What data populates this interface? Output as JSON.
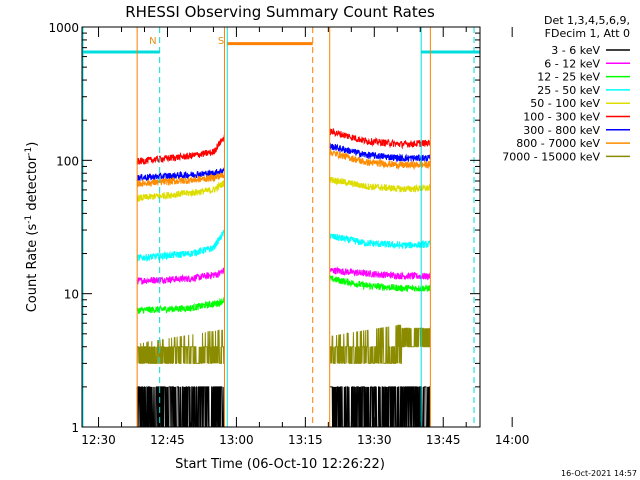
{
  "chart_data": {
    "type": "line",
    "title": "RHESSI Observing Summary Count Rates",
    "xlabel": "Start Time (06-Oct-10 12:26:22)",
    "ylabel_main": "Count Rate (s",
    "ylabel_sup1": "-1",
    "ylabel_mid": " detector",
    "ylabel_sup2": "-1",
    "ylabel_end": ")",
    "ylabel": "Count Rate (s-1 detector-1)",
    "yscale": "log",
    "ylim": [
      1,
      1000
    ],
    "xlim_min": [
      26.4,
      113.0
    ],
    "xtick_values": [
      30,
      45,
      60,
      75,
      90,
      105,
      120
    ],
    "xtick_labels": [
      "12:30",
      "12:45",
      "13:00",
      "13:15",
      "13:30",
      "13:45",
      "14:00"
    ],
    "ytick_values": [
      1,
      10,
      100,
      1000
    ],
    "ytick_labels": [
      "1",
      "10",
      "100",
      "1000"
    ],
    "info_lines": [
      "Det 1,3,4,5,6,9,",
      "FDecim 1, Att 0"
    ],
    "timestamp": "16-Oct-2021 14:57",
    "markers": [
      {
        "label": "N",
        "t": 43.3,
        "color": "#e8901a"
      },
      {
        "label": "S",
        "t": 58.0,
        "color": "#e8901a"
      }
    ],
    "night_periods": [
      {
        "start": 26.4,
        "end": 43.3,
        "level": 650,
        "color": "#00dddd"
      },
      {
        "start": 100.2,
        "end": 113.0,
        "level": 650,
        "color": "#00dddd"
      }
    ],
    "saa_period": {
      "start": 58.0,
      "end": 76.6,
      "level": 750,
      "color": "#ff7f00"
    },
    "dashed_lines": [
      {
        "t": 43.3,
        "color": "#00dddd"
      },
      {
        "t": 76.6,
        "color": "#ff7f00"
      },
      {
        "t": 111.7,
        "color": "#00dddd"
      }
    ],
    "solid_vlines": [
      {
        "t": 26.6,
        "color": "#00dddd"
      },
      {
        "t": 58.0,
        "color": "#00dddd"
      },
      {
        "t": 100.2,
        "color": "#00dddd"
      },
      {
        "t": 38.4,
        "color": "#ff7f00"
      },
      {
        "t": 57.4,
        "color": "#ff7f00"
      },
      {
        "t": 80.3,
        "color": "#ff7f00"
      },
      {
        "t": 102.2,
        "color": "#ff7f00"
      }
    ],
    "segments": [
      [
        38.4,
        57.4
      ],
      [
        80.3,
        102.2
      ]
    ],
    "series": [
      {
        "name": "3 - 6 keV",
        "color": "#000000",
        "kind": "count_noise",
        "lo": 1,
        "hi": 2,
        "profile": [
          [
            38.4,
            1.5
          ],
          [
            57.4,
            1.6
          ],
          [
            80.3,
            1.6
          ],
          [
            102.2,
            1.5
          ]
        ]
      },
      {
        "name": "6 - 12 keV",
        "color": "#ff00ff",
        "profile": [
          [
            38.4,
            12.5
          ],
          [
            50,
            13.0
          ],
          [
            56,
            14.0
          ],
          [
            57.4,
            15.0
          ],
          [
            80.3,
            15.0
          ],
          [
            88,
            14.2
          ],
          [
            96,
            13.6
          ],
          [
            102.2,
            13.5
          ]
        ]
      },
      {
        "name": "12 - 25 keV",
        "color": "#00ff00",
        "profile": [
          [
            38.4,
            7.5
          ],
          [
            50,
            7.8
          ],
          [
            56,
            8.5
          ],
          [
            57.4,
            9.0
          ],
          [
            80.3,
            13.0
          ],
          [
            88,
            11.5
          ],
          [
            96,
            11.0
          ],
          [
            102.2,
            11.0
          ]
        ]
      },
      {
        "name": "25 - 50 keV",
        "color": "#00ffff",
        "profile": [
          [
            38.4,
            18.5
          ],
          [
            50,
            20.0
          ],
          [
            55,
            22.0
          ],
          [
            57.4,
            29.0
          ],
          [
            80.3,
            27.0
          ],
          [
            88,
            24.0
          ],
          [
            96,
            23.0
          ],
          [
            102.2,
            23.5
          ]
        ]
      },
      {
        "name": "50 - 100 keV",
        "color": "#dddd00",
        "profile": [
          [
            38.4,
            52.0
          ],
          [
            50,
            57.0
          ],
          [
            55,
            60.0
          ],
          [
            57.4,
            68.0
          ],
          [
            80.3,
            72.0
          ],
          [
            88,
            64.0
          ],
          [
            96,
            61.0
          ],
          [
            102.2,
            62.0
          ]
        ]
      },
      {
        "name": "100 - 300 keV",
        "color": "#ff0000",
        "profile": [
          [
            38.4,
            98.0
          ],
          [
            50,
            108.0
          ],
          [
            55,
            115.0
          ],
          [
            57.4,
            150.0
          ],
          [
            80.3,
            165.0
          ],
          [
            88,
            140.0
          ],
          [
            96,
            132.0
          ],
          [
            102.2,
            135.0
          ]
        ]
      },
      {
        "name": "300 - 800 keV",
        "color": "#0000ff",
        "profile": [
          [
            38.4,
            74.0
          ],
          [
            50,
            78.0
          ],
          [
            55,
            80.0
          ],
          [
            57.4,
            85.0
          ],
          [
            80.3,
            128.0
          ],
          [
            88,
            110.0
          ],
          [
            96,
            104.0
          ],
          [
            102.2,
            104.0
          ]
        ]
      },
      {
        "name": "800 - 7000 keV",
        "color": "#ff8c00",
        "profile": [
          [
            38.4,
            67.0
          ],
          [
            50,
            71.0
          ],
          [
            55,
            74.0
          ],
          [
            57.4,
            78.0
          ],
          [
            80.3,
            115.0
          ],
          [
            88,
            97.0
          ],
          [
            96,
            92.0
          ],
          [
            102.2,
            93.0
          ]
        ]
      },
      {
        "name": "7000 - 15000 keV",
        "color": "#8b8b00",
        "kind": "step_noise",
        "lo": 3,
        "hi": 4,
        "profile": [
          [
            38.4,
            3.5
          ],
          [
            57.4,
            4.5
          ],
          [
            80.3,
            4.0
          ],
          [
            98,
            5.0
          ],
          [
            102.2,
            5.5
          ]
        ]
      }
    ]
  }
}
